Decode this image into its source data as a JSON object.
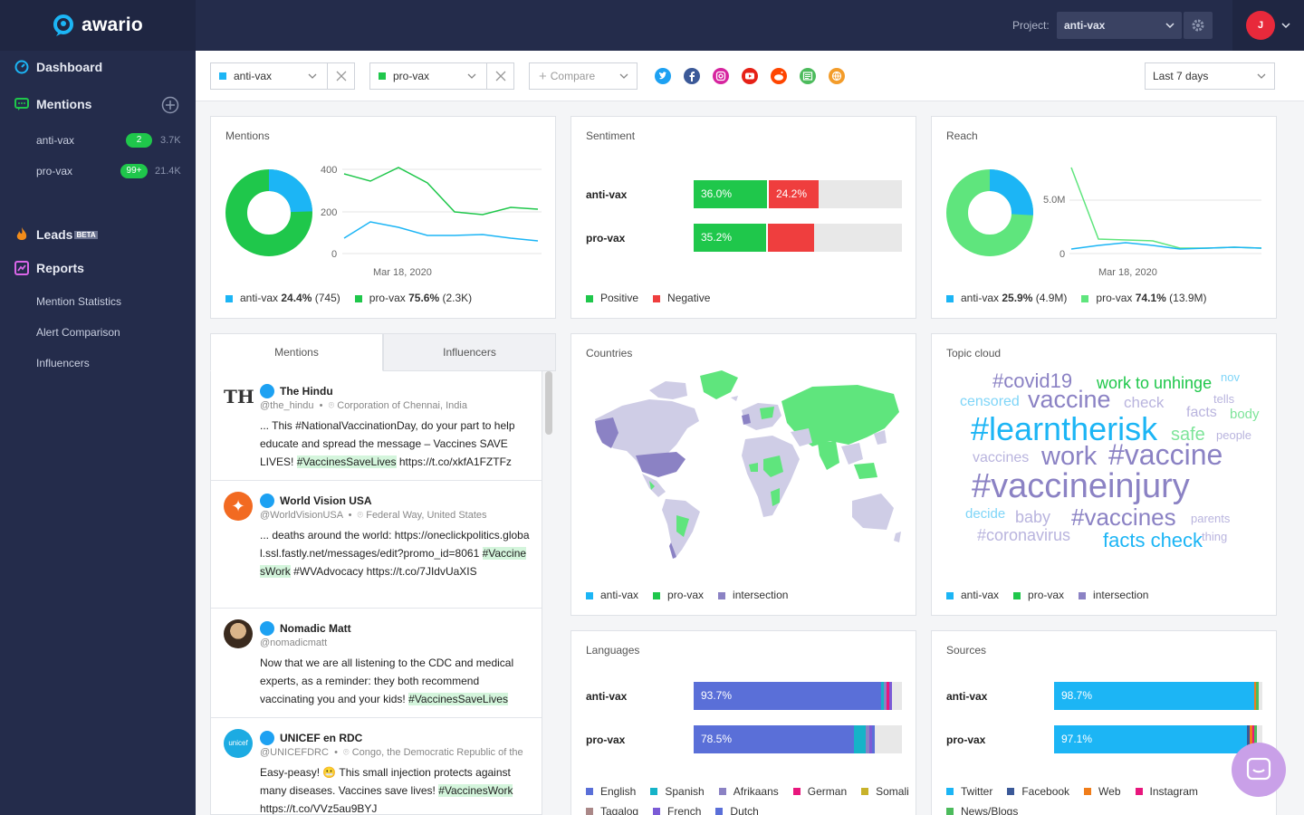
{
  "app": {
    "name": "awario"
  },
  "sidebar": {
    "dashboard": "Dashboard",
    "mentions": "Mentions",
    "alerts": [
      {
        "label": "anti-vax",
        "badge": "2",
        "count": "3.7K"
      },
      {
        "label": "pro-vax",
        "badge": "99+",
        "count": "21.4K"
      }
    ],
    "leads": "Leads",
    "leads_badge": "BETA",
    "reports": "Reports",
    "report_items": [
      "Mention Statistics",
      "Alert Comparison",
      "Influencers"
    ]
  },
  "topbar": {
    "project_label": "Project:",
    "project_value": "anti-vax",
    "user_initial": "J"
  },
  "filters": {
    "alert1": "anti-vax",
    "alert2": "pro-vax",
    "compare_placeholder": "Compare",
    "period": "Last 7 days",
    "sources": [
      "twitter-icon",
      "facebook-icon",
      "instagram-icon",
      "youtube-icon",
      "reddit-icon",
      "news-icon",
      "web-icon"
    ]
  },
  "colors": {
    "anti": "#1cb5f5",
    "pro": "#1fc74b",
    "intersection": "#8b82c4",
    "negative": "#ef3e3e",
    "sidebar": "#242c4b"
  },
  "mentions_card": {
    "title": "Mentions",
    "y_ticks": [
      "400",
      "200",
      "0"
    ],
    "x_label": "Mar 18, 2020",
    "legend": [
      {
        "name": "anti-vax",
        "pct": "24.4%",
        "val": "(745)"
      },
      {
        "name": "pro-vax",
        "pct": "75.6%",
        "val": "(2.3K)"
      }
    ]
  },
  "sentiment_card": {
    "title": "Sentiment",
    "rows": [
      {
        "label": "anti-vax",
        "positive": "36.0%",
        "negative": "24.2%"
      },
      {
        "label": "pro-vax",
        "positive": "35.2%",
        "negative": ""
      }
    ],
    "legend": [
      "Positive",
      "Negative"
    ]
  },
  "reach_card": {
    "title": "Reach",
    "y_ticks": [
      "5.0M",
      "0"
    ],
    "x_label": "Mar 18, 2020",
    "legend": [
      {
        "name": "anti-vax",
        "pct": "25.9%",
        "val": "(4.9M)"
      },
      {
        "name": "pro-vax",
        "pct": "74.1%",
        "val": "(13.9M)"
      }
    ]
  },
  "feed": {
    "tabs": [
      "Mentions",
      "Influencers"
    ],
    "posts": [
      {
        "name": "The Hindu",
        "handle": "@the_hindu",
        "location": "Corporation of Chennai, India",
        "text": "... This #NationalVaccinationDay, do your part to help educate and spread the message – Vaccines SAVE LIVES!",
        "tag": "#VaccinesSaveLives",
        "tail": " https://t.co/xkfA1FZTFz"
      },
      {
        "name": "World Vision USA",
        "handle": "@WorldVisionUSA",
        "location": "Federal Way, United States",
        "text": "... deaths around the world: https://oneclickpolitics.global.ssl.fastly.net/messages/edit?promo_id=8061",
        "tag": "#VaccinesWork",
        "tail": " #WVAdvocacy https://t.co/7JIdvUaXIS"
      },
      {
        "name": "Nomadic Matt",
        "handle": "@nomadicmatt",
        "location": "",
        "text": "Now that we are all listening to the CDC and medical experts, as a reminder: they both recommend vaccinating you and your kids!",
        "tag": "#VaccinesSaveLives",
        "tail": ""
      },
      {
        "name": "UNICEF en RDC",
        "handle": "@UNICEFDRC",
        "location": "Congo, the Democratic Republic of the",
        "text": "Easy-peasy! 😬 This small injection protects against many diseases. Vaccines save lives!",
        "tag": "#VaccinesWork",
        "tail": " https://t.co/VVz5au9BYJ"
      }
    ]
  },
  "countries_card": {
    "title": "Countries",
    "legend": [
      "anti-vax",
      "pro-vax",
      "intersection"
    ]
  },
  "topic_card": {
    "title": "Topic cloud",
    "legend": [
      "anti-vax",
      "pro-vax",
      "intersection"
    ],
    "words": [
      {
        "t": "#covid19",
        "c": "#8b82c4"
      },
      {
        "t": "work to unhinge",
        "c": "#1fc74b"
      },
      {
        "t": "nov",
        "c": "#7fd5f8"
      },
      {
        "t": "censored",
        "c": "#7fd5f8"
      },
      {
        "t": "vaccine",
        "c": "#8b82c4"
      },
      {
        "t": "check",
        "c": "#b9b4de"
      },
      {
        "t": "tells",
        "c": "#b9b4de"
      },
      {
        "t": "facts",
        "c": "#b9b4de"
      },
      {
        "t": "body",
        "c": "#7ee49a"
      },
      {
        "t": "#learntherisk",
        "c": "#1cb5f5"
      },
      {
        "t": "safe",
        "c": "#7ee49a"
      },
      {
        "t": "people",
        "c": "#b9b4de"
      },
      {
        "t": "vaccines",
        "c": "#b9b4de"
      },
      {
        "t": "work",
        "c": "#8b82c4"
      },
      {
        "t": "#vaccine",
        "c": "#8b82c4"
      },
      {
        "t": "#vaccineinjury",
        "c": "#8b82c4"
      },
      {
        "t": "decide",
        "c": "#7fd5f8"
      },
      {
        "t": "baby",
        "c": "#b9b4de"
      },
      {
        "t": "#vaccines",
        "c": "#8b82c4"
      },
      {
        "t": "parents",
        "c": "#b9b4de"
      },
      {
        "t": "#coronavirus",
        "c": "#b9b4de"
      },
      {
        "t": "facts check",
        "c": "#1cb5f5"
      },
      {
        "t": "thing",
        "c": "#b9b4de"
      }
    ]
  },
  "languages_card": {
    "title": "Languages",
    "rows": [
      {
        "label": "anti-vax",
        "main": "93.7%"
      },
      {
        "label": "pro-vax",
        "main": "78.5%"
      }
    ],
    "legend": [
      {
        "name": "English",
        "c": "#5a6fd8"
      },
      {
        "name": "Spanish",
        "c": "#15b3c8"
      },
      {
        "name": "Afrikaans",
        "c": "#8b82c4"
      },
      {
        "name": "German",
        "c": "#e8177d"
      },
      {
        "name": "Somali",
        "c": "#c8b22a"
      },
      {
        "name": "Tagalog",
        "c": "#a88"
      },
      {
        "name": "French",
        "c": "#7b5bd6"
      },
      {
        "name": "Dutch",
        "c": "#5a6fd8"
      }
    ]
  },
  "sources_card": {
    "title": "Sources",
    "rows": [
      {
        "label": "anti-vax",
        "main": "98.7%"
      },
      {
        "label": "pro-vax",
        "main": "97.1%"
      }
    ],
    "legend": [
      {
        "name": "Twitter",
        "c": "#1cb5f5"
      },
      {
        "name": "Facebook",
        "c": "#3b5998"
      },
      {
        "name": "Web",
        "c": "#f07d1a"
      },
      {
        "name": "Instagram",
        "c": "#e8177d"
      },
      {
        "name": "News/Blogs",
        "c": "#4cbb5c"
      }
    ]
  }
}
